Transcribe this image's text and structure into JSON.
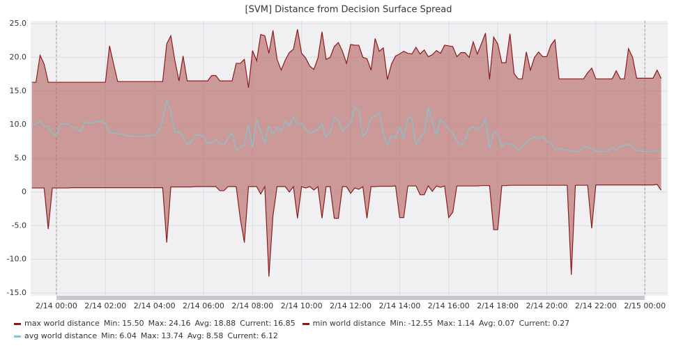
{
  "chart_data": {
    "type": "line",
    "title": "[SVM] Distance from Decision Surface Spread",
    "xlim": [
      "2/13 22:57",
      "2/15 00:56"
    ],
    "xticks": [
      "2/14 00:00",
      "2/14 02:00",
      "2/14 04:00",
      "2/14 06:00",
      "2/14 08:00",
      "2/14 10:00",
      "2/14 12:00",
      "2/14 14:00",
      "2/14 16:00",
      "2/14 18:00",
      "2/14 20:00",
      "2/14 22:00",
      "2/15 00:00"
    ],
    "ylim": [
      -15,
      25
    ],
    "yticks": [
      {
        "value": -15,
        "label": "-15.0"
      },
      {
        "value": -10,
        "label": "-10.0"
      },
      {
        "value": -5,
        "label": "-5.0"
      },
      {
        "value": 0,
        "label": "0"
      },
      {
        "value": 5,
        "label": "5.0"
      },
      {
        "value": 10,
        "label": "10.0"
      },
      {
        "value": 15,
        "label": "15.0"
      },
      {
        "value": 20,
        "label": "20.0"
      },
      {
        "value": 25,
        "label": "25.0"
      }
    ],
    "grid": true,
    "fill_between": [
      0,
      1
    ],
    "x": [
      "2/13 23:00",
      "2/13 23:10",
      "2/13 23:20",
      "2/13 23:30",
      "2/13 23:40",
      "2/13 23:50",
      "2/14 00:00",
      "2/14 00:10",
      "2/14 00:20",
      "2/14 00:30",
      "2/14 00:40",
      "2/14 00:50",
      "2/14 01:00",
      "2/14 01:10",
      "2/14 01:20",
      "2/14 01:30",
      "2/14 01:40",
      "2/14 01:50",
      "2/14 02:00",
      "2/14 02:10",
      "2/14 02:20",
      "2/14 02:30",
      "2/14 02:40",
      "2/14 02:50",
      "2/14 03:00",
      "2/14 03:10",
      "2/14 03:20",
      "2/14 03:30",
      "2/14 03:40",
      "2/14 03:50",
      "2/14 04:00",
      "2/14 04:10",
      "2/14 04:20",
      "2/14 04:30",
      "2/14 04:40",
      "2/14 04:50",
      "2/14 05:00",
      "2/14 05:10",
      "2/14 05:20",
      "2/14 05:30",
      "2/14 05:40",
      "2/14 05:50",
      "2/14 06:00",
      "2/14 06:10",
      "2/14 06:20",
      "2/14 06:30",
      "2/14 06:40",
      "2/14 06:50",
      "2/14 07:00",
      "2/14 07:10",
      "2/14 07:20",
      "2/14 07:30",
      "2/14 07:40",
      "2/14 07:50",
      "2/14 08:00",
      "2/14 08:10",
      "2/14 08:20",
      "2/14 08:30",
      "2/14 08:40",
      "2/14 08:50",
      "2/14 09:00",
      "2/14 09:10",
      "2/14 09:20",
      "2/14 09:30",
      "2/14 09:40",
      "2/14 09:50",
      "2/14 10:00",
      "2/14 10:10",
      "2/14 10:20",
      "2/14 10:30",
      "2/14 10:40",
      "2/14 10:50",
      "2/14 11:00",
      "2/14 11:10",
      "2/14 11:20",
      "2/14 11:30",
      "2/14 11:40",
      "2/14 11:50",
      "2/14 12:00",
      "2/14 12:10",
      "2/14 12:20",
      "2/14 12:30",
      "2/14 12:40",
      "2/14 12:50",
      "2/14 13:00",
      "2/14 13:10",
      "2/14 13:20",
      "2/14 13:30",
      "2/14 13:40",
      "2/14 13:50",
      "2/14 14:00",
      "2/14 14:10",
      "2/14 14:20",
      "2/14 14:30",
      "2/14 14:40",
      "2/14 14:50",
      "2/14 15:00",
      "2/14 15:10",
      "2/14 15:20",
      "2/14 15:30",
      "2/14 15:40",
      "2/14 15:50",
      "2/14 16:00",
      "2/14 16:10",
      "2/14 16:20",
      "2/14 16:30",
      "2/14 16:40",
      "2/14 16:50",
      "2/14 17:00",
      "2/14 17:10",
      "2/14 17:20",
      "2/14 17:30",
      "2/14 17:40",
      "2/14 17:50",
      "2/14 18:00",
      "2/14 18:10",
      "2/14 18:20",
      "2/14 18:30",
      "2/14 18:40",
      "2/14 18:50",
      "2/14 19:00",
      "2/14 19:10",
      "2/14 19:20",
      "2/14 19:30",
      "2/14 19:40",
      "2/14 19:50",
      "2/14 20:00",
      "2/14 20:10",
      "2/14 20:20",
      "2/14 20:30",
      "2/14 20:40",
      "2/14 20:50",
      "2/14 21:00",
      "2/14 21:10",
      "2/14 21:20",
      "2/14 21:30",
      "2/14 21:40",
      "2/14 21:50",
      "2/14 22:00",
      "2/14 22:10",
      "2/14 22:20",
      "2/14 22:30",
      "2/14 22:40",
      "2/14 22:50",
      "2/14 23:00",
      "2/14 23:10",
      "2/14 23:20",
      "2/14 23:30",
      "2/14 23:40",
      "2/14 23:50",
      "2/15 00:00",
      "2/15 00:10",
      "2/15 00:20",
      "2/15 00:30",
      "2/15 00:40"
    ],
    "series": [
      {
        "name": "max world distance",
        "color": "#8b1a1a",
        "stats": [
          {
            "name": "Min:",
            "value": "15.50"
          },
          {
            "name": "Max:",
            "value": "24.16"
          },
          {
            "name": "Avg:",
            "value": "18.88"
          },
          {
            "name": "Current:",
            "value": "16.85"
          }
        ],
        "values": [
          16.3,
          16.3,
          20.3,
          19,
          16.3,
          16.3,
          16.3,
          16.3,
          16.3,
          16.3,
          16.3,
          16.3,
          16.3,
          16.3,
          16.3,
          16.3,
          16.3,
          16.3,
          16.3,
          21.7,
          19,
          16.4,
          16.4,
          16.4,
          16.4,
          16.4,
          16.4,
          16.4,
          16.4,
          16.4,
          16.4,
          16.4,
          16.4,
          22,
          23.2,
          19.5,
          16.5,
          20.2,
          16.5,
          16.5,
          16.5,
          16.5,
          16.5,
          16.5,
          17.3,
          17.3,
          16.5,
          16.5,
          16.5,
          16.5,
          19.1,
          19.1,
          19.7,
          15.5,
          21,
          19.5,
          23.4,
          23.2,
          20.6,
          24,
          19.7,
          18.1,
          19.6,
          20.7,
          21.2,
          24.16,
          20.6,
          19.9,
          18.7,
          18.2,
          19.9,
          23.8,
          19.7,
          20,
          21.6,
          22.2,
          20.9,
          19.1,
          21.9,
          21.8,
          21.8,
          20,
          19.8,
          18.1,
          22.8,
          20.9,
          21.4,
          16.7,
          19,
          20.2,
          20.5,
          20.9,
          20.6,
          20.5,
          21.5,
          20.5,
          21.1,
          20.1,
          20.4,
          21,
          20.6,
          21.8,
          21.7,
          21.6,
          20.1,
          20.7,
          20.7,
          20,
          22.3,
          20.5,
          22,
          23.6,
          16.7,
          23,
          22,
          19.2,
          19.2,
          23.5,
          17.6,
          16.8,
          16.8,
          20.8,
          18.1,
          20,
          20.8,
          20.1,
          20.1,
          21.8,
          22.6,
          16.8,
          16.8,
          16.8,
          16.8,
          16.8,
          16.8,
          16.8,
          17.7,
          18.4,
          16.8,
          16.8,
          16.8,
          16.8,
          16.8,
          18,
          16.8,
          16.8,
          21.3,
          20,
          16.9,
          16.9,
          16.9,
          16.9,
          16.9,
          18.1,
          16.85
        ]
      },
      {
        "name": "min world distance",
        "color": "#8b1a1a",
        "stats": [
          {
            "name": "Min:",
            "value": "-12.55"
          },
          {
            "name": "Max:",
            "value": "1.14"
          },
          {
            "name": "Avg:",
            "value": "0.07"
          },
          {
            "name": "Current:",
            "value": "0.27"
          }
        ],
        "values": [
          0.6,
          0.6,
          0.6,
          0.6,
          -5.5,
          0.6,
          0.6,
          0.6,
          0.6,
          0.6,
          0.65,
          0.65,
          0.65,
          0.65,
          0.65,
          0.65,
          0.65,
          0.65,
          0.65,
          0.65,
          0.65,
          0.65,
          0.65,
          0.65,
          0.65,
          0.65,
          0.65,
          0.65,
          0.65,
          0.65,
          0.65,
          0.65,
          0.65,
          -7.5,
          0.75,
          0.75,
          0.75,
          0.75,
          0.75,
          0.75,
          0.8,
          0.8,
          0.8,
          0.8,
          0.8,
          0.8,
          0.2,
          0.2,
          0.8,
          0.8,
          0.8,
          -4,
          -7.5,
          0.8,
          0.8,
          0.8,
          -0.3,
          0.8,
          -12.55,
          -3.5,
          0.8,
          0.8,
          0.8,
          0,
          0.8,
          -3.9,
          0.8,
          0.6,
          0.8,
          0.3,
          0.8,
          -3.9,
          0.8,
          0.8,
          -3.9,
          -3.9,
          0.8,
          0.8,
          -0.2,
          0.6,
          0.4,
          0.8,
          -3.9,
          0.8,
          0.8,
          0.85,
          0.85,
          0.85,
          0.85,
          0.9,
          -3.8,
          -3.8,
          0.9,
          0.9,
          0.9,
          -0.4,
          -0.4,
          0.9,
          0.1,
          0.9,
          0.7,
          0.9,
          -3.8,
          -3,
          0.9,
          0.9,
          0.9,
          0.9,
          0.9,
          0.9,
          0.95,
          0.95,
          0.95,
          -5.6,
          -5.6,
          0.95,
          0.95,
          1,
          1,
          1,
          1,
          1,
          1,
          1,
          1,
          1,
          1,
          1,
          1,
          1,
          1,
          1,
          -12.3,
          1,
          1,
          1,
          1,
          -5.4,
          1.05,
          1.05,
          1.05,
          1.05,
          1.05,
          1.05,
          1.05,
          1.05,
          1.05,
          1.05,
          1.05,
          1.05,
          1.05,
          1.05,
          1.05,
          1.14,
          0.27
        ]
      },
      {
        "name": "avg world distance",
        "color": "#7ec8d4",
        "stats": [
          {
            "name": "Min:",
            "value": "6.04"
          },
          {
            "name": "Max:",
            "value": "13.74"
          },
          {
            "name": "Avg:",
            "value": "8.58"
          },
          {
            "name": "Current:",
            "value": "6.12"
          }
        ],
        "values": [
          10,
          10,
          10.5,
          9.8,
          9.7,
          8.7,
          8.4,
          10,
          10.1,
          10,
          9.6,
          9.3,
          9,
          10.4,
          10.2,
          10.3,
          10.5,
          10.4,
          10.2,
          8.9,
          8.7,
          8.7,
          8.6,
          8.4,
          8.3,
          8.3,
          8.3,
          8.3,
          8.3,
          8.4,
          8.4,
          9,
          10.6,
          13.74,
          12,
          8.8,
          9,
          8.3,
          7,
          7.4,
          8.5,
          8.4,
          8.3,
          7.2,
          7.3,
          7.8,
          7.2,
          7,
          8,
          8.8,
          6.2,
          6.5,
          7,
          10,
          6.6,
          10.7,
          9,
          7.3,
          9.8,
          8.5,
          9.6,
          9.1,
          10.5,
          9.8,
          11.2,
          10,
          10.2,
          9.3,
          8.6,
          9,
          9.3,
          10.1,
          8.1,
          8.8,
          11,
          10.7,
          9,
          9.7,
          10.2,
          12.6,
          12.2,
          8.2,
          9,
          11,
          11.3,
          11.7,
          8.7,
          6.9,
          8.4,
          8,
          9.6,
          8,
          11,
          11,
          7,
          8,
          8.8,
          12.6,
          10.4,
          8.5,
          10.8,
          10.2,
          9.2,
          8.8,
          7.6,
          6.8,
          7.8,
          9.3,
          9.7,
          9.2,
          9.7,
          10.8,
          6.5,
          8.9,
          8.6,
          6.7,
          7.2,
          7.1,
          6.9,
          6.2,
          6.8,
          7.3,
          7.9,
          8.2,
          7.9,
          8.3,
          7.5,
          7.3,
          6.3,
          6.5,
          6.3,
          6.2,
          6.1,
          6.04,
          6,
          6.7,
          6.7,
          6.4,
          6.1,
          6,
          6,
          6,
          6.7,
          6.2,
          6.7,
          6.9,
          7.1,
          6.6,
          6.2,
          6.1,
          6,
          6,
          6,
          6.2,
          6.12
        ]
      }
    ]
  }
}
